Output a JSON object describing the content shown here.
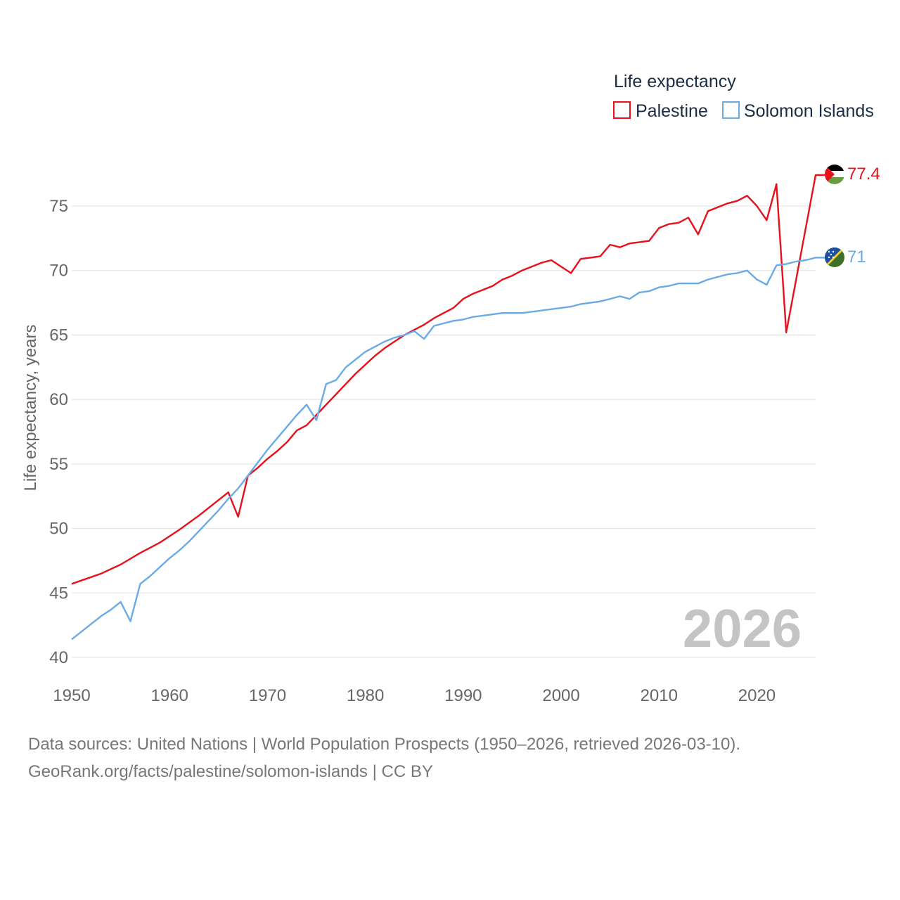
{
  "colors": {
    "palestine": "#e8101a",
    "solomon": "#6aabe6",
    "grid": "#e6e6e6",
    "year": "#c4c4c4"
  },
  "footer": {
    "source": "Data sources: United Nations | World Population Prospects (1950–2026, retrieved 2026-03-10).",
    "url": "GeoRank.org/facts/palestine/solomon-islands | CC BY"
  },
  "chart_data": {
    "type": "line",
    "title": "",
    "legend_title": "Life expectancy",
    "xlabel": "",
    "ylabel": "Life expectancy, years",
    "xlim": [
      1950,
      2026
    ],
    "ylim": [
      40,
      78
    ],
    "x_ticks": [
      "1950",
      "1960",
      "1970",
      "1980",
      "1990",
      "2000",
      "2010",
      "2020"
    ],
    "y_ticks": [
      "40",
      "45",
      "50",
      "55",
      "60",
      "65",
      "70",
      "75"
    ],
    "grid": true,
    "legend_position": "top-right",
    "year_label": "2026",
    "series": [
      {
        "name": "Palestine",
        "color": "#e8101a",
        "end_label": "77.4",
        "flag_icon": "palestine-flag-icon",
        "points": [
          [
            1950,
            45.7
          ],
          [
            1953,
            46.5
          ],
          [
            1955,
            47.2
          ],
          [
            1957,
            48.1
          ],
          [
            1959,
            48.9
          ],
          [
            1961,
            49.9
          ],
          [
            1963,
            51.0
          ],
          [
            1964,
            51.6
          ],
          [
            1966,
            52.8
          ],
          [
            1967,
            50.9
          ],
          [
            1968,
            54.1
          ],
          [
            1969,
            54.7
          ],
          [
            1970,
            55.4
          ],
          [
            1971,
            56.0
          ],
          [
            1972,
            56.7
          ],
          [
            1973,
            57.6
          ],
          [
            1974,
            58.0
          ],
          [
            1975,
            58.8
          ],
          [
            1976,
            59.6
          ],
          [
            1977,
            60.4
          ],
          [
            1978,
            61.2
          ],
          [
            1979,
            62.0
          ],
          [
            1980,
            62.7
          ],
          [
            1981,
            63.4
          ],
          [
            1982,
            64.0
          ],
          [
            1984,
            65.0
          ],
          [
            1985,
            65.4
          ],
          [
            1986,
            65.8
          ],
          [
            1987,
            66.3
          ],
          [
            1988,
            66.7
          ],
          [
            1989,
            67.1
          ],
          [
            1990,
            67.8
          ],
          [
            1991,
            68.2
          ],
          [
            1992,
            68.5
          ],
          [
            1993,
            68.8
          ],
          [
            1994,
            69.3
          ],
          [
            1995,
            69.6
          ],
          [
            1996,
            70.0
          ],
          [
            1997,
            70.3
          ],
          [
            1998,
            70.6
          ],
          [
            1999,
            70.8
          ],
          [
            2000,
            70.3
          ],
          [
            2001,
            69.8
          ],
          [
            2002,
            70.9
          ],
          [
            2003,
            71.0
          ],
          [
            2004,
            71.1
          ],
          [
            2005,
            72.0
          ],
          [
            2006,
            71.8
          ],
          [
            2007,
            72.1
          ],
          [
            2008,
            72.2
          ],
          [
            2009,
            72.3
          ],
          [
            2010,
            73.3
          ],
          [
            2011,
            73.6
          ],
          [
            2012,
            73.7
          ],
          [
            2013,
            74.1
          ],
          [
            2014,
            72.8
          ],
          [
            2015,
            74.6
          ],
          [
            2016,
            74.9
          ],
          [
            2017,
            75.2
          ],
          [
            2018,
            75.4
          ],
          [
            2019,
            75.8
          ],
          [
            2020,
            75.0
          ],
          [
            2021,
            73.9
          ],
          [
            2022,
            76.7
          ],
          [
            2023,
            65.2
          ],
          [
            2026,
            77.4
          ]
        ]
      },
      {
        "name": "Solomon Islands",
        "color": "#6aabe6",
        "end_label": "71",
        "flag_icon": "solomon-islands-flag-icon",
        "points": [
          [
            1950,
            41.4
          ],
          [
            1951,
            42.0
          ],
          [
            1952,
            42.6
          ],
          [
            1953,
            43.2
          ],
          [
            1954,
            43.7
          ],
          [
            1955,
            44.3
          ],
          [
            1956,
            42.8
          ],
          [
            1957,
            45.7
          ],
          [
            1958,
            46.3
          ],
          [
            1959,
            47.0
          ],
          [
            1960,
            47.7
          ],
          [
            1961,
            48.3
          ],
          [
            1962,
            49.0
          ],
          [
            1963,
            49.8
          ],
          [
            1964,
            50.6
          ],
          [
            1965,
            51.4
          ],
          [
            1966,
            52.3
          ],
          [
            1967,
            53.1
          ],
          [
            1968,
            54.1
          ],
          [
            1969,
            55.1
          ],
          [
            1970,
            56.1
          ],
          [
            1971,
            57.0
          ],
          [
            1972,
            57.9
          ],
          [
            1973,
            58.8
          ],
          [
            1974,
            59.6
          ],
          [
            1975,
            58.4
          ],
          [
            1976,
            61.2
          ],
          [
            1977,
            61.5
          ],
          [
            1978,
            62.5
          ],
          [
            1979,
            63.1
          ],
          [
            1980,
            63.7
          ],
          [
            1981,
            64.1
          ],
          [
            1982,
            64.5
          ],
          [
            1983,
            64.8
          ],
          [
            1984,
            65.0
          ],
          [
            1985,
            65.3
          ],
          [
            1986,
            64.7
          ],
          [
            1987,
            65.7
          ],
          [
            1988,
            65.9
          ],
          [
            1989,
            66.1
          ],
          [
            1990,
            66.2
          ],
          [
            1991,
            66.4
          ],
          [
            1992,
            66.5
          ],
          [
            1993,
            66.6
          ],
          [
            1994,
            66.7
          ],
          [
            1996,
            66.7
          ],
          [
            1998,
            66.9
          ],
          [
            2000,
            67.1
          ],
          [
            2001,
            67.2
          ],
          [
            2002,
            67.4
          ],
          [
            2004,
            67.6
          ],
          [
            2005,
            67.8
          ],
          [
            2006,
            68.0
          ],
          [
            2007,
            67.8
          ],
          [
            2008,
            68.3
          ],
          [
            2009,
            68.4
          ],
          [
            2010,
            68.7
          ],
          [
            2011,
            68.8
          ],
          [
            2012,
            69.0
          ],
          [
            2014,
            69.0
          ],
          [
            2015,
            69.3
          ],
          [
            2016,
            69.5
          ],
          [
            2017,
            69.7
          ],
          [
            2018,
            69.8
          ],
          [
            2019,
            70.0
          ],
          [
            2020,
            69.3
          ],
          [
            2021,
            68.9
          ],
          [
            2022,
            70.4
          ],
          [
            2023,
            70.5
          ],
          [
            2024,
            70.7
          ],
          [
            2025,
            70.8
          ],
          [
            2026,
            71.0
          ]
        ]
      }
    ]
  }
}
